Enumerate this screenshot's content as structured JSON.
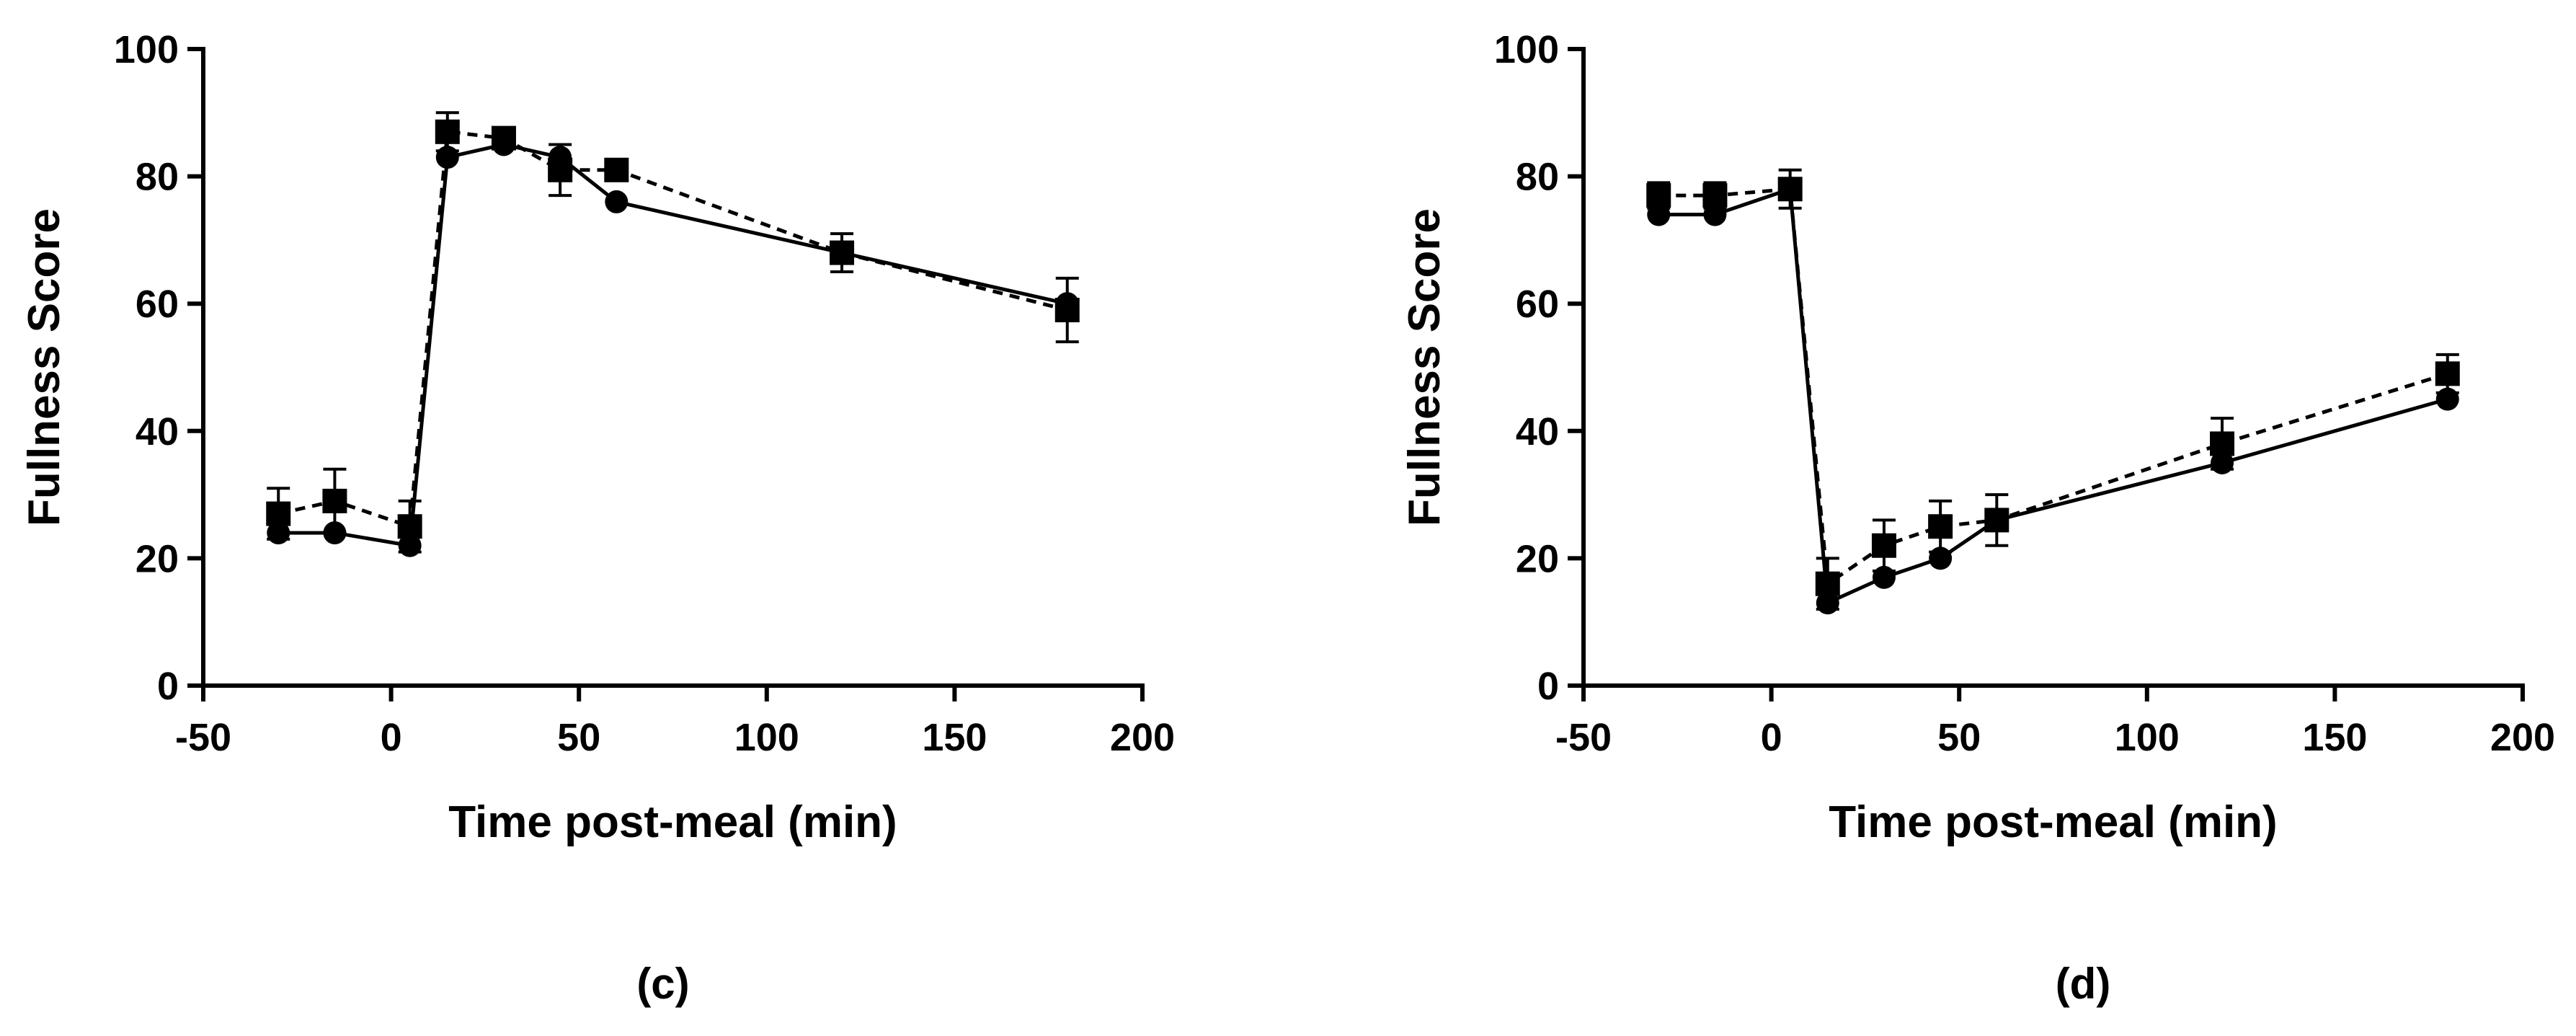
{
  "chart_data": [
    {
      "type": "line",
      "panel_label": "(c)",
      "title": "",
      "xlabel": "Time post-meal (min)",
      "ylabel": "Fullness Score",
      "xlim": [
        -50,
        200
      ],
      "ylim": [
        0,
        100
      ],
      "xticks": [
        -50,
        0,
        50,
        100,
        150,
        200
      ],
      "yticks": [
        0,
        20,
        40,
        60,
        80,
        100
      ],
      "x": [
        -30,
        -15,
        5,
        15,
        30,
        45,
        60,
        120,
        180
      ],
      "series": [
        {
          "name": "circle-solid",
          "marker": "circle",
          "line": "solid",
          "values": [
            24,
            24,
            22,
            83,
            85,
            83,
            76,
            68,
            60
          ],
          "errors": [
            1,
            1,
            1,
            1,
            1,
            1,
            1,
            1,
            1
          ]
        },
        {
          "name": "square-dashed",
          "marker": "square",
          "line": "dashed",
          "values": [
            27,
            29,
            25,
            87,
            86,
            81,
            81,
            68,
            59
          ],
          "errors": [
            4,
            5,
            4,
            3,
            1,
            4,
            1,
            3,
            5
          ]
        }
      ]
    },
    {
      "type": "line",
      "panel_label": "(d)",
      "title": "",
      "xlabel": "Time post-meal (min)",
      "ylabel": "Fullness Score",
      "xlim": [
        -50,
        200
      ],
      "ylim": [
        0,
        100
      ],
      "xticks": [
        -50,
        0,
        50,
        100,
        150,
        200
      ],
      "yticks": [
        0,
        20,
        40,
        60,
        80,
        100
      ],
      "x": [
        -30,
        -15,
        5,
        15,
        30,
        45,
        60,
        120,
        180
      ],
      "series": [
        {
          "name": "circle-solid",
          "marker": "circle",
          "line": "solid",
          "values": [
            74,
            74,
            78,
            13,
            17,
            20,
            26,
            35,
            45
          ],
          "errors": [
            1,
            1,
            1,
            1,
            1,
            1,
            1,
            1,
            1
          ]
        },
        {
          "name": "square-dashed",
          "marker": "square",
          "line": "dashed",
          "values": [
            77,
            77,
            78,
            16,
            22,
            25,
            26,
            38,
            49
          ],
          "errors": [
            2,
            2,
            3,
            4,
            4,
            4,
            4,
            4,
            3
          ]
        }
      ]
    }
  ]
}
